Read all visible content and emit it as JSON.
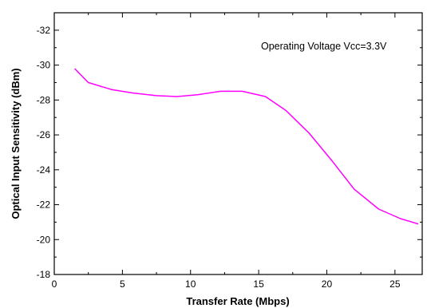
{
  "chart_data": {
    "type": "line",
    "xlabel": "Transfer Rate (Mbps)",
    "ylabel": "Optical Input Sensitivity (dBm)",
    "annotation": "Operating Voltage Vcc=3.3V",
    "xlim": [
      0,
      27
    ],
    "ylim": [
      -18,
      -33
    ],
    "x_ticks": [
      0,
      5,
      10,
      15,
      20,
      25
    ],
    "x_tick_labels": [
      "0",
      "5",
      "10",
      "15",
      "20",
      "25"
    ],
    "y_ticks": [
      -32,
      -30,
      -28,
      -26,
      -24,
      -22,
      -20,
      -18
    ],
    "y_tick_labels": [
      "-32",
      "-30",
      "-28",
      "-26",
      "-24",
      "-22",
      "-20",
      "-18"
    ],
    "y_inverted": true,
    "grid": false,
    "series": [
      {
        "color": "#ff00ff",
        "x": [
          1.5,
          2.5,
          4.2,
          5.8,
          7.5,
          9.0,
          10.5,
          12.2,
          13.8,
          15.5,
          17.0,
          18.7,
          20.4,
          22.0,
          23.8,
          25.4,
          26.7
        ],
        "y": [
          -29.8,
          -29.0,
          -28.6,
          -28.4,
          -28.25,
          -28.2,
          -28.3,
          -28.5,
          -28.5,
          -28.2,
          -27.4,
          -26.1,
          -24.5,
          -22.9,
          -21.75,
          -21.2,
          -20.9
        ]
      }
    ]
  }
}
